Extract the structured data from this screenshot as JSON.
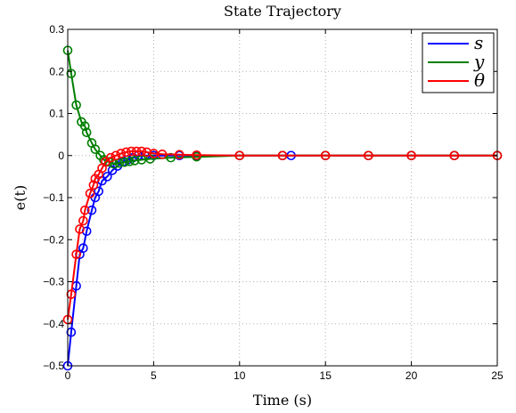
{
  "chart_data": {
    "type": "line",
    "title": "State Trajectory",
    "xlabel": "Time (s)",
    "ylabel": "e(t)",
    "xlim": [
      0,
      25
    ],
    "ylim": [
      -0.5,
      0.3
    ],
    "xticks": [
      0,
      5,
      10,
      15,
      20,
      25
    ],
    "yticks": [
      -0.5,
      -0.4,
      -0.3,
      -0.2,
      -0.1,
      0,
      0.1,
      0.2,
      0.3
    ],
    "xtick_labels": [
      "0",
      "5",
      "10",
      "15",
      "20",
      "25"
    ],
    "ytick_labels": [
      "−0.5",
      "−0.4",
      "−0.3",
      "−0.2",
      "−0.1",
      "0",
      "0.1",
      "0.2",
      "0.3"
    ],
    "grid": true,
    "legend_position": "top-right",
    "markers": "circle",
    "series": [
      {
        "name": "s",
        "color": "#0000ff",
        "x": [
          0,
          0.2,
          0.5,
          0.7,
          0.9,
          1.1,
          1.4,
          1.6,
          1.8,
          2.0,
          2.3,
          2.6,
          2.9,
          3.2,
          3.5,
          3.8,
          4.1,
          4.5,
          5.0,
          6.5,
          7.5,
          10,
          12.5,
          13,
          15,
          17.5,
          20,
          22.5,
          25
        ],
        "y": [
          -0.5,
          -0.42,
          -0.31,
          -0.235,
          -0.22,
          -0.18,
          -0.13,
          -0.1,
          -0.085,
          -0.06,
          -0.05,
          -0.035,
          -0.025,
          -0.015,
          -0.01,
          -0.005,
          0,
          0,
          0,
          0,
          0,
          0,
          0,
          0,
          0,
          0,
          0,
          0,
          0
        ]
      },
      {
        "name": "y",
        "color": "#007f00",
        "x": [
          0,
          0.2,
          0.5,
          0.8,
          1.0,
          1.1,
          1.4,
          1.6,
          1.9,
          2.1,
          2.4,
          2.7,
          3.0,
          3.3,
          3.6,
          3.9,
          4.3,
          4.8,
          6.0,
          7.5,
          10,
          12.5,
          15,
          17.5,
          20,
          22.5,
          25
        ],
        "y": [
          0.25,
          0.195,
          0.12,
          0.08,
          0.07,
          0.055,
          0.03,
          0.015,
          0.0,
          -0.01,
          -0.015,
          -0.02,
          -0.018,
          -0.016,
          -0.014,
          -0.012,
          -0.01,
          -0.008,
          -0.005,
          -0.003,
          0,
          0,
          0,
          0,
          0,
          0,
          0
        ]
      },
      {
        "name": "θ",
        "color": "#ff0000",
        "x": [
          0,
          0.2,
          0.5,
          0.7,
          0.9,
          1.0,
          1.3,
          1.5,
          1.6,
          1.8,
          2.0,
          2.2,
          2.5,
          2.8,
          3.1,
          3.4,
          3.7,
          4.0,
          4.3,
          4.6,
          5.0,
          5.5,
          6.5,
          7.5,
          10,
          12.5,
          15,
          17.5,
          20,
          22.5,
          25
        ],
        "y": [
          -0.39,
          -0.33,
          -0.235,
          -0.175,
          -0.155,
          -0.13,
          -0.09,
          -0.07,
          -0.055,
          -0.045,
          -0.03,
          -0.015,
          -0.005,
          0,
          0.005,
          0.008,
          0.01,
          0.01,
          0.01,
          0.008,
          0.005,
          0.003,
          0.002,
          0.001,
          0,
          0,
          0,
          0,
          0,
          0,
          0
        ]
      }
    ]
  }
}
